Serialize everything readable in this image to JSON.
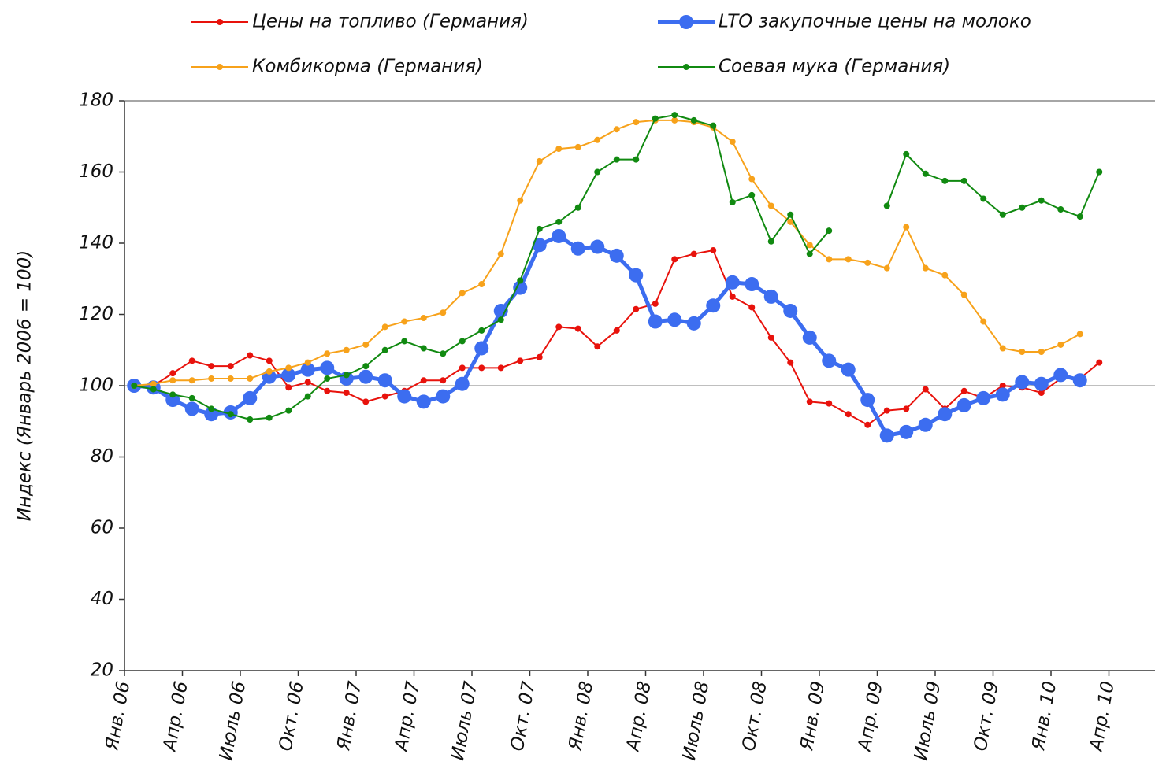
{
  "chart_data": {
    "type": "line",
    "y_label": "Индекс (Январь 2006 = 100)",
    "categories": [
      "Янв. 06",
      null,
      null,
      "Апр. 06",
      null,
      null,
      "Июль 06",
      null,
      null,
      "Окт. 06",
      null,
      null,
      "Янв. 07",
      null,
      null,
      "Апр. 07",
      null,
      null,
      "Июль 07",
      null,
      null,
      "Окт. 07",
      null,
      null,
      "Янв. 08",
      null,
      null,
      "Апр. 08",
      null,
      null,
      "Июль 08",
      null,
      null,
      "Окт. 08",
      null,
      null,
      "Янв. 09",
      null,
      null,
      "Апр. 09",
      null,
      null,
      "Июль 09",
      null,
      null,
      "Окт. 09",
      null,
      null,
      "Янв. 10",
      null,
      null,
      "Апр. 10"
    ],
    "ylim": [
      20,
      180
    ],
    "yticks": [
      20,
      40,
      60,
      80,
      100,
      120,
      140,
      160,
      180
    ],
    "reference_line": 100,
    "series": [
      {
        "name": "Цены на топливо (Германия)",
        "color": "#e8120c",
        "width": 2,
        "marker": 4,
        "values": [
          100,
          100,
          103.5,
          107,
          105.5,
          105.5,
          108.5,
          107,
          99.5,
          101,
          98.5,
          98,
          95.5,
          97,
          98.5,
          101.5,
          101.5,
          105,
          105,
          105,
          107,
          108,
          116.5,
          116,
          111,
          115.5,
          121.5,
          123,
          135.5,
          137,
          138,
          125,
          122,
          113.5,
          106.5,
          95.5,
          95,
          92,
          89,
          93,
          93.5,
          99,
          93.5,
          98.5,
          96.5,
          100,
          99.5,
          98,
          102,
          102,
          106.5,
          null
        ]
      },
      {
        "name": "LTO закупочные цены на молоко",
        "color": "#3c6df0",
        "width": 5,
        "marker": 9,
        "values": [
          100,
          99.5,
          96,
          93.5,
          92,
          92.5,
          96.5,
          102.5,
          103,
          104.5,
          105,
          102,
          102.5,
          101.5,
          97,
          95.5,
          97,
          100.5,
          110.5,
          121,
          127.5,
          139.5,
          142,
          138.5,
          139,
          136.5,
          131,
          118,
          118.5,
          117.5,
          122.5,
          129,
          128.5,
          125,
          121,
          113.5,
          107,
          104.5,
          96,
          86,
          87,
          89,
          92,
          94.5,
          96.5,
          97.5,
          101,
          100.5,
          103,
          101.5,
          null,
          null
        ]
      },
      {
        "name": "Комбикорма (Германия)",
        "color": "#f7a21b",
        "width": 2,
        "marker": 4,
        "values": [
          100,
          100.5,
          101.5,
          101.5,
          102,
          102,
          102,
          104,
          105,
          106.5,
          109,
          110,
          111.5,
          116.5,
          118,
          119,
          120.5,
          126,
          128.5,
          137,
          152,
          163,
          166.5,
          167,
          169,
          172,
          174,
          174.5,
          174.5,
          174,
          172.5,
          168.5,
          158,
          150.5,
          146,
          139.5,
          135.5,
          135.5,
          134.5,
          133,
          144.5,
          133,
          131,
          125.5,
          118,
          110.5,
          109.5,
          109.5,
          111.5,
          114.5,
          null,
          null
        ]
      },
      {
        "name": "Соевая мука (Германия)",
        "color": "#118a11",
        "width": 2,
        "marker": 4,
        "values": [
          100,
          99,
          97.5,
          96.5,
          93.5,
          92,
          90.5,
          91,
          93,
          97,
          102,
          103,
          105.5,
          110,
          112.5,
          110.5,
          109,
          112.5,
          115.5,
          118.5,
          129.5,
          144,
          146,
          150,
          160,
          163.5,
          163.5,
          175,
          176,
          174.5,
          173,
          151.5,
          153.5,
          140.5,
          148,
          137,
          143.5,
          null,
          null,
          150.5,
          165,
          159.5,
          157.5,
          157.5,
          152.5,
          148,
          150,
          152,
          149.5,
          147.5,
          160,
          null
        ]
      }
    ],
    "legend": "top"
  }
}
